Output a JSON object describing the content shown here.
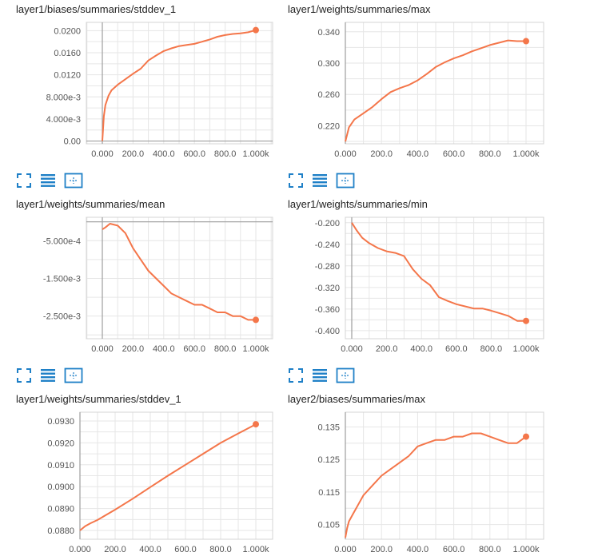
{
  "theme": {
    "line_color": "#f4764a",
    "grid_color": "#e6e6e6",
    "axis_color": "#9e9e9e",
    "icon_color": "#1f80c7"
  },
  "toolbar_icons": [
    "fullscreen-icon",
    "list-icon",
    "fit-domain-icon"
  ],
  "chart_data": [
    {
      "type": "line",
      "title": "layer1/biases/summaries/stddev_1",
      "x_ticks": [
        "0.000",
        "200.0",
        "400.0",
        "600.0",
        "800.0",
        "1.000k"
      ],
      "y_ticks": [
        "0.00",
        "4.000e-3",
        "8.000e-3",
        "0.0120",
        "0.0160",
        "0.0200"
      ],
      "y_tick_values": [
        0,
        0.004,
        0.008,
        0.012,
        0.016,
        0.02
      ],
      "xlim": [
        -60,
        1030
      ],
      "ylim": [
        -0.0005,
        0.0215
      ],
      "series": [
        {
          "name": "layer1/biases/summaries/stddev_1",
          "x": [
            0,
            10,
            20,
            40,
            60,
            100,
            150,
            200,
            250,
            300,
            350,
            400,
            450,
            500,
            550,
            600,
            650,
            700,
            750,
            800,
            850,
            900,
            950,
            1000
          ],
          "y": [
            0.0,
            0.0045,
            0.0065,
            0.0082,
            0.0092,
            0.0102,
            0.0112,
            0.0122,
            0.0131,
            0.0146,
            0.0155,
            0.0163,
            0.0168,
            0.0172,
            0.0174,
            0.0176,
            0.018,
            0.0184,
            0.0189,
            0.0192,
            0.0194,
            0.0195,
            0.0197,
            0.0201
          ]
        }
      ]
    },
    {
      "type": "line",
      "title": "layer1/weights/summaries/max",
      "x_ticks": [
        "0.000",
        "200.0",
        "400.0",
        "600.0",
        "800.0",
        "1.000k"
      ],
      "y_ticks": [
        "0.220",
        "0.260",
        "0.300",
        "0.340"
      ],
      "y_tick_values": [
        0.22,
        0.26,
        0.3,
        0.34
      ],
      "xlim": [
        -60,
        1030
      ],
      "ylim": [
        0.197,
        0.352
      ],
      "series": [
        {
          "name": "layer1/weights/summaries/max",
          "x": [
            0,
            20,
            50,
            100,
            150,
            200,
            250,
            300,
            350,
            400,
            450,
            500,
            550,
            600,
            650,
            700,
            750,
            800,
            850,
            900,
            950,
            1000
          ],
          "y": [
            0.2,
            0.218,
            0.228,
            0.236,
            0.244,
            0.254,
            0.263,
            0.268,
            0.272,
            0.278,
            0.286,
            0.295,
            0.301,
            0.306,
            0.31,
            0.315,
            0.319,
            0.323,
            0.326,
            0.329,
            0.328,
            0.328
          ]
        }
      ]
    },
    {
      "type": "line",
      "title": "layer1/weights/summaries/mean",
      "x_ticks": [
        "0.000",
        "200.0",
        "400.0",
        "600.0",
        "800.0",
        "1.000k"
      ],
      "y_ticks": [
        "-5.000e-4",
        "-1.500e-3",
        "-2.500e-3"
      ],
      "y_tick_values": [
        -0.0005,
        -0.0015,
        -0.0025
      ],
      "xlim": [
        -60,
        1030
      ],
      "ylim": [
        -0.0031,
        0.00012
      ],
      "series": [
        {
          "name": "layer1/weights/summaries/mean",
          "x": [
            0,
            20,
            50,
            100,
            150,
            200,
            250,
            300,
            350,
            400,
            450,
            500,
            550,
            600,
            650,
            700,
            750,
            800,
            850,
            900,
            950,
            1000
          ],
          "y": [
            -0.0002,
            -0.00015,
            -5e-05,
            -0.0001,
            -0.0003,
            -0.0007,
            -0.001,
            -0.0013,
            -0.0015,
            -0.0017,
            -0.0019,
            -0.002,
            -0.0021,
            -0.0022,
            -0.0022,
            -0.0023,
            -0.0024,
            -0.0024,
            -0.0025,
            -0.0025,
            -0.0026,
            -0.0026
          ]
        }
      ]
    },
    {
      "type": "line",
      "title": "layer1/weights/summaries/min",
      "x_ticks": [
        "0.000",
        "200.0",
        "400.0",
        "600.0",
        "800.0",
        "1.000k"
      ],
      "y_ticks": [
        "-0.200",
        "-0.240",
        "-0.280",
        "-0.320",
        "-0.360",
        "-0.400"
      ],
      "y_tick_values": [
        -0.2,
        -0.24,
        -0.28,
        -0.32,
        -0.36,
        -0.4
      ],
      "xlim": [
        -60,
        1030
      ],
      "ylim": [
        -0.415,
        -0.19
      ],
      "series": [
        {
          "name": "layer1/weights/summaries/min",
          "x": [
            0,
            30,
            60,
            100,
            150,
            200,
            250,
            300,
            350,
            400,
            450,
            500,
            550,
            600,
            650,
            700,
            750,
            800,
            850,
            900,
            950,
            1000
          ],
          "y": [
            -0.2,
            -0.215,
            -0.228,
            -0.238,
            -0.247,
            -0.253,
            -0.256,
            -0.262,
            -0.286,
            -0.304,
            -0.316,
            -0.338,
            -0.345,
            -0.351,
            -0.355,
            -0.359,
            -0.359,
            -0.363,
            -0.368,
            -0.373,
            -0.382,
            -0.382
          ]
        }
      ]
    },
    {
      "type": "line",
      "title": "layer1/weights/summaries/stddev_1",
      "x_ticks": [
        "0.000",
        "200.0",
        "400.0",
        "600.0",
        "800.0",
        "1.000k"
      ],
      "y_ticks": [
        "0.0880",
        "0.0890",
        "0.0900",
        "0.0910",
        "0.0920",
        "0.0930"
      ],
      "y_tick_values": [
        0.088,
        0.089,
        0.09,
        0.091,
        0.092,
        0.093
      ],
      "xlim": [
        -20,
        1030
      ],
      "ylim": [
        0.0876,
        0.0934
      ],
      "series": [
        {
          "name": "layer1/weights/summaries/stddev_1",
          "x": [
            0,
            30,
            60,
            100,
            200,
            300,
            400,
            500,
            600,
            700,
            800,
            900,
            1000
          ],
          "y": [
            0.088,
            0.0882,
            0.08833,
            0.08848,
            0.08895,
            0.08945,
            0.08998,
            0.0905,
            0.091,
            0.0915,
            0.092,
            0.09243,
            0.09285
          ]
        }
      ]
    },
    {
      "type": "line",
      "title": "layer2/biases/summaries/max",
      "x_ticks": [
        "0.000",
        "200.0",
        "400.0",
        "600.0",
        "800.0",
        "1.000k"
      ],
      "y_ticks": [
        "0.105",
        "0.115",
        "0.125",
        "0.135"
      ],
      "y_tick_values": [
        0.105,
        0.115,
        0.125,
        0.135
      ],
      "xlim": [
        -60,
        1030
      ],
      "ylim": [
        0.1005,
        0.1395
      ],
      "series": [
        {
          "name": "layer2/biases/summaries/max",
          "x": [
            0,
            10,
            20,
            40,
            70,
            100,
            150,
            200,
            250,
            300,
            350,
            400,
            450,
            500,
            550,
            600,
            650,
            700,
            750,
            800,
            850,
            900,
            950,
            1000
          ],
          "y": [
            0.101,
            0.104,
            0.106,
            0.108,
            0.111,
            0.114,
            0.117,
            0.12,
            0.122,
            0.124,
            0.126,
            0.129,
            0.13,
            0.131,
            0.131,
            0.132,
            0.132,
            0.133,
            0.133,
            0.132,
            0.131,
            0.13,
            0.13,
            0.132
          ]
        }
      ]
    }
  ]
}
